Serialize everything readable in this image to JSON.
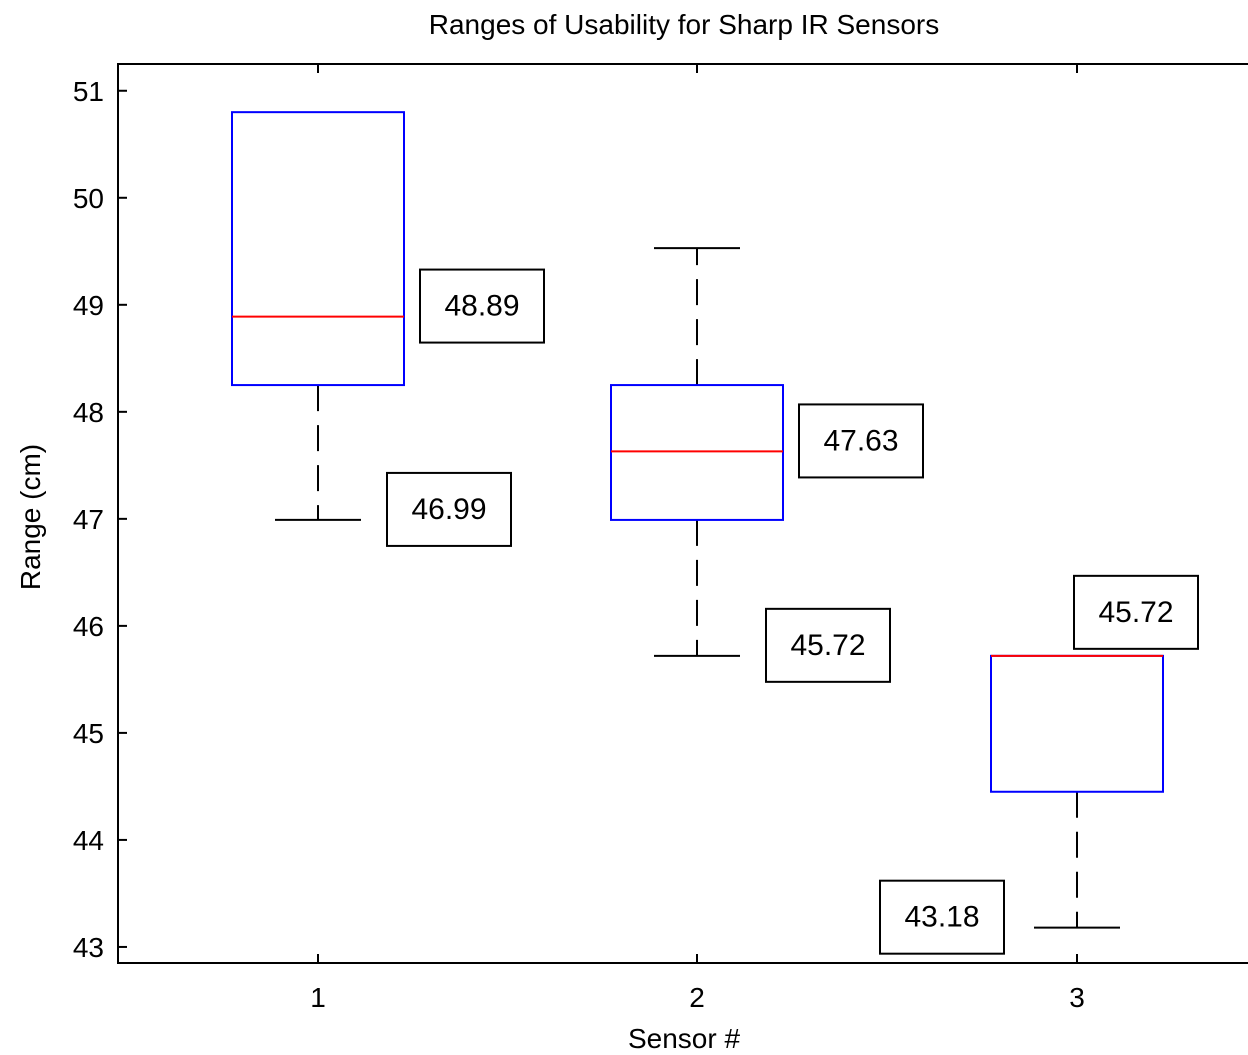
{
  "chart_data": {
    "type": "box",
    "title": "Ranges of Usability for Sharp IR Sensors",
    "xlabel": "Sensor #",
    "ylabel": "Range (cm)",
    "categories": [
      "1",
      "2",
      "3"
    ],
    "ylim": [
      42.85,
      51.25
    ],
    "yticks": [
      43,
      44,
      45,
      46,
      47,
      48,
      49,
      50,
      51
    ],
    "grid": false,
    "boxes": [
      {
        "category": "1",
        "whisker_low": 46.99,
        "q1": 48.25,
        "median": 48.89,
        "q3": 50.8,
        "whisker_high": 50.8,
        "box_color": "#0000ff",
        "median_color": "#ff0000"
      },
      {
        "category": "2",
        "whisker_low": 45.72,
        "q1": 46.99,
        "median": 47.63,
        "q3": 48.25,
        "whisker_high": 49.53,
        "box_color": "#0000ff",
        "median_color": "#ff0000"
      },
      {
        "category": "3",
        "whisker_low": 43.18,
        "q1": 44.45,
        "median": 45.72,
        "q3": 45.72,
        "whisker_high": 45.72,
        "box_color": "#0000ff",
        "median_color": "#ff0000"
      }
    ],
    "annotations": [
      {
        "text": "48.89",
        "category": "1",
        "value": 48.89,
        "side": "right"
      },
      {
        "text": "46.99",
        "category": "1",
        "value": 46.99,
        "side": "right"
      },
      {
        "text": "47.63",
        "category": "2",
        "value": 47.63,
        "side": "right"
      },
      {
        "text": "45.72",
        "category": "2",
        "value": 45.72,
        "side": "right"
      },
      {
        "text": "45.72",
        "category": "3",
        "value": 45.72,
        "side": "above-right"
      },
      {
        "text": "43.18",
        "category": "3",
        "value": 43.18,
        "side": "left"
      }
    ]
  }
}
